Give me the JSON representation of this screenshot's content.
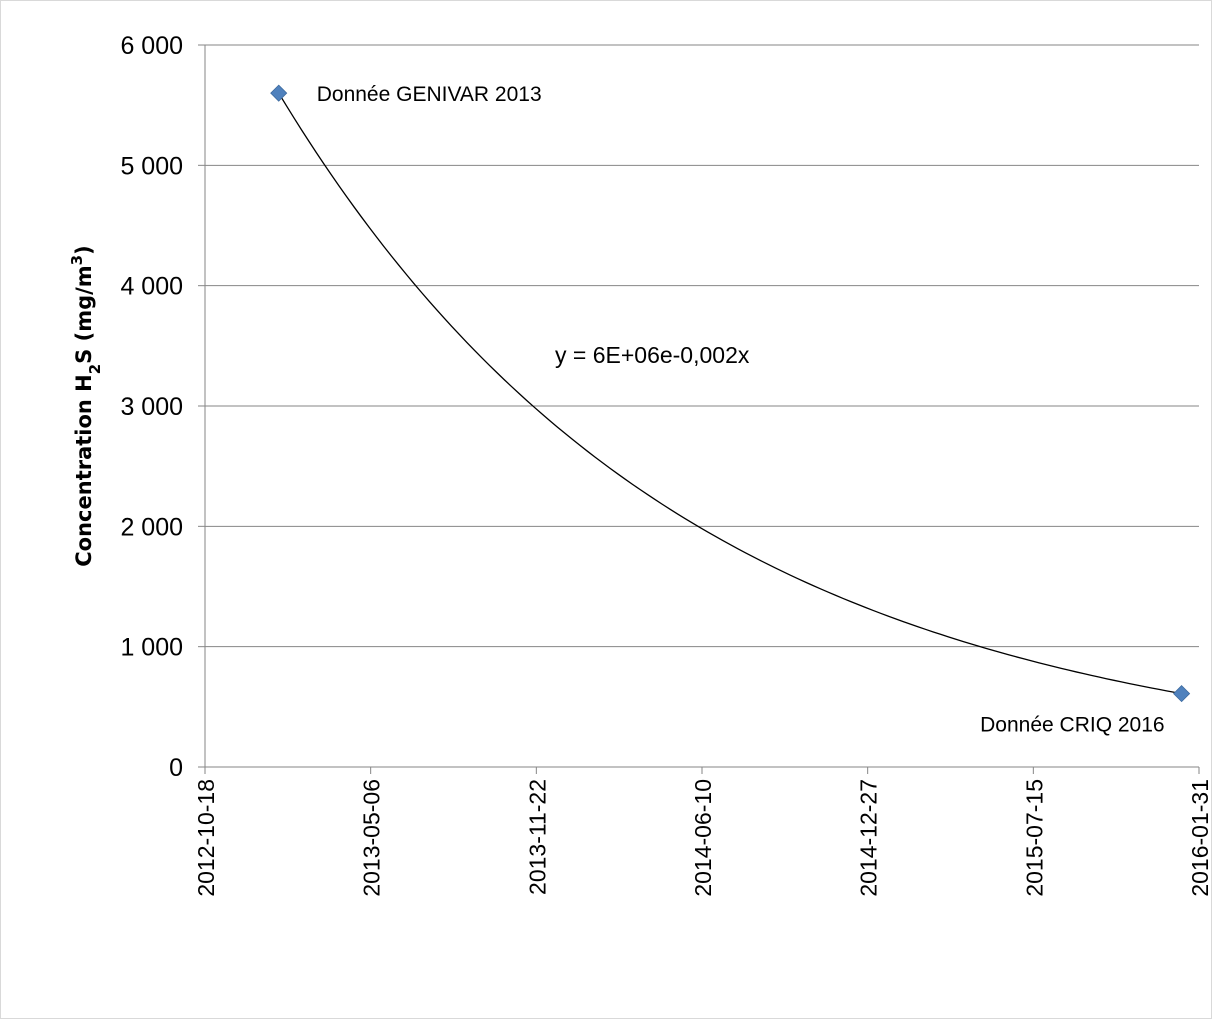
{
  "chart_data": {
    "type": "scatter",
    "title": "",
    "xlabel": "",
    "ylabel": {
      "prefix": "Concentration H",
      "sub": "2",
      "mid": "S (mg/m",
      "sup": "3",
      "suffix": ")"
    },
    "ylim": [
      0,
      6000
    ],
    "yticks": [
      {
        "value": 0,
        "label": "0"
      },
      {
        "value": 1000,
        "label": "1 000"
      },
      {
        "value": 2000,
        "label": "2 000"
      },
      {
        "value": 3000,
        "label": "3 000"
      },
      {
        "value": 4000,
        "label": "4 000"
      },
      {
        "value": 5000,
        "label": "5 000"
      },
      {
        "value": 6000,
        "label": "6 000"
      }
    ],
    "xlim": [
      "2012-10-18",
      "2016-01-31"
    ],
    "xticks": [
      "2012-10-18",
      "2013-05-06",
      "2013-11-22",
      "2014-06-10",
      "2014-12-27",
      "2015-07-15",
      "2016-01-31"
    ],
    "grid": true,
    "series": [
      {
        "marker": "diamond",
        "color": "#4f81bd",
        "points": [
          {
            "x": "2013-01-15",
            "y": 5600,
            "label": "Donnée GENIVAR 2013"
          },
          {
            "x": "2016-01-10",
            "y": 610,
            "label": "Donnée CRIQ 2016"
          }
        ]
      }
    ],
    "trendline": {
      "type": "exponential",
      "color": "#000000",
      "equation": "y = 6E+06e-0,002x"
    }
  }
}
